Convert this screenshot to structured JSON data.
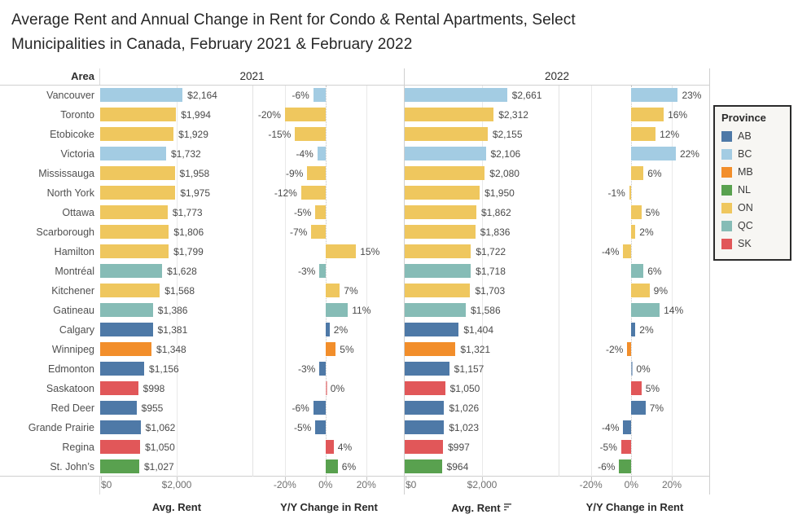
{
  "title": {
    "line1": "Average Rent and Annual Change in Rent for Condo & Rental Apartments, Select",
    "line2": "Municipalities in Canada, February 2021 & February 2022"
  },
  "header": {
    "area": "Area",
    "year1": "2021",
    "year2": "2022"
  },
  "axes": {
    "rent_title": "Avg. Rent",
    "rent_title_sorted": "Avg. Rent",
    "change_title": "Y/Y Change in Rent",
    "rent_ticks": [
      "$0",
      "$2,000"
    ],
    "change_ticks": [
      "-20%",
      "0%",
      "20%"
    ]
  },
  "legend": {
    "title": "Province",
    "items": [
      {
        "code": "AB",
        "color": "#4e79a7"
      },
      {
        "code": "BC",
        "color": "#a3cce3"
      },
      {
        "code": "MB",
        "color": "#f28e2b"
      },
      {
        "code": "NL",
        "color": "#59a14f"
      },
      {
        "code": "ON",
        "color": "#efc75e"
      },
      {
        "code": "QC",
        "color": "#86bcb6"
      },
      {
        "code": "SK",
        "color": "#e15759"
      }
    ]
  },
  "chart_data": {
    "type": "bar",
    "title": "Average Rent and Annual Change in Rent for Condo & Rental Apartments, Select Municipalities in Canada, February 2021 & February 2022",
    "categories": [
      "Vancouver",
      "Toronto",
      "Etobicoke",
      "Victoria",
      "Mississauga",
      "North York",
      "Ottawa",
      "Scarborough",
      "Hamilton",
      "Montréal",
      "Kitchener",
      "Gatineau",
      "Calgary",
      "Winnipeg",
      "Edmonton",
      "Saskatoon",
      "Red Deer",
      "Grande Prairie",
      "Regina",
      "St. John’s"
    ],
    "provinces": [
      "BC",
      "ON",
      "ON",
      "BC",
      "ON",
      "ON",
      "ON",
      "ON",
      "ON",
      "QC",
      "ON",
      "QC",
      "AB",
      "MB",
      "AB",
      "SK",
      "AB",
      "AB",
      "SK",
      "NL"
    ],
    "series": [
      {
        "name": "Avg. Rent 2021",
        "unit": "dollars",
        "values": [
          2164,
          1994,
          1929,
          1732,
          1958,
          1975,
          1773,
          1806,
          1799,
          1628,
          1568,
          1386,
          1381,
          1348,
          1156,
          998,
          955,
          1062,
          1050,
          1027
        ]
      },
      {
        "name": "Y/Y Change in Rent 2021",
        "unit": "percent",
        "values": [
          -6,
          -20,
          -15,
          -4,
          -9,
          -12,
          -5,
          -7,
          15,
          -3,
          7,
          11,
          2,
          5,
          -3,
          0,
          -6,
          -5,
          4,
          6
        ]
      },
      {
        "name": "Avg. Rent 2022",
        "unit": "dollars",
        "values": [
          2661,
          2312,
          2155,
          2106,
          2080,
          1950,
          1862,
          1836,
          1722,
          1718,
          1703,
          1586,
          1404,
          1321,
          1157,
          1050,
          1026,
          1023,
          997,
          964
        ]
      },
      {
        "name": "Y/Y Change in Rent 2022",
        "unit": "percent",
        "values": [
          23,
          16,
          12,
          22,
          6,
          -1,
          5,
          2,
          -4,
          6,
          9,
          14,
          2,
          -2,
          0,
          5,
          7,
          -4,
          -5,
          -6
        ]
      }
    ],
    "rent_axis": {
      "ticks": [
        0,
        2000
      ],
      "max": 4000,
      "format": "$#,##0"
    },
    "change_axis": {
      "ticks": [
        -20,
        0,
        20
      ],
      "zero_position_pct": 48,
      "pct_per_unit": 1.35,
      "format": "0%"
    },
    "legend_position": "right",
    "grid": "vertical-light"
  }
}
